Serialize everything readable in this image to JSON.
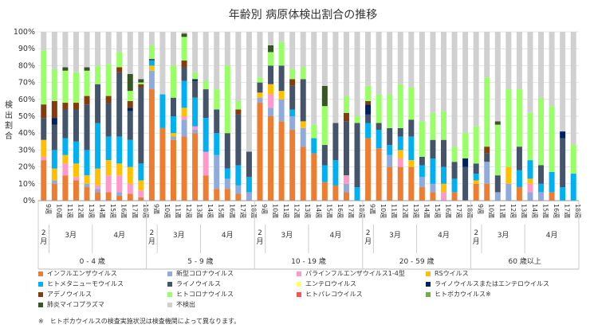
{
  "chart_data": {
    "type": "bar",
    "stacked": true,
    "title": "年齢別 病原体検出割合の推移",
    "ylabel": "検出割合",
    "ylim": [
      0,
      100
    ],
    "y_ticks": [
      "0%",
      "10%",
      "20%",
      "30%",
      "40%",
      "50%",
      "60%",
      "70%",
      "80%",
      "90%",
      "100%"
    ],
    "week_labels": [
      "9週",
      "10週",
      "11週",
      "12週",
      "13週",
      "14週",
      "15週",
      "16週",
      "17週",
      "18週"
    ],
    "month_labels": [
      {
        "label": "2月",
        "at": 0
      },
      {
        "label": "3月",
        "at": 1
      },
      {
        "label": "4月",
        "at": 5
      }
    ],
    "groups": [
      "0 - 4 歳",
      "5 - 9 歳",
      "10 - 19 歳",
      "20 - 59 歳",
      "60 歳以上"
    ],
    "series_names": [
      "インフルエンザウイルス",
      "新型コロナウイルス",
      "パラインフルエンザウイルス1-4型",
      "RSウイルス",
      "ヒトメタニューモウイルス",
      "ライノウイルス",
      "エンテロウイルス",
      "ライノウイルスまたはエンテロウイルス",
      "アデノウイルス",
      "ヒトコロナウイルス",
      "ヒトパレコウイルス",
      "ヒトボカウイルス※",
      "肺炎マイコプラズマ",
      "不検出"
    ],
    "series_colors": [
      "#ed7d31",
      "#8faadc",
      "#ff99cc",
      "#ffc000",
      "#00b0f0",
      "#44546a",
      "#ffff66",
      "#002060",
      "#843c0c",
      "#99ff66",
      "#ff5050",
      "#70ad47",
      "#375623",
      "#d0d0d0"
    ],
    "data": [
      [
        [
          24,
          0,
          2,
          10,
          0,
          13,
          0,
          0,
          8,
          32,
          0,
          0,
          0,
          11
        ],
        [
          10,
          2,
          0,
          7,
          11,
          15,
          0,
          4,
          10,
          19,
          0,
          0,
          0,
          22
        ],
        [
          15,
          0,
          7,
          5,
          10,
          17,
          0,
          0,
          4,
          19,
          0,
          0,
          2,
          21
        ],
        [
          12,
          0,
          2,
          8,
          13,
          19,
          0,
          0,
          4,
          18,
          0,
          0,
          0,
          24
        ],
        [
          8,
          2,
          0,
          5,
          15,
          27,
          0,
          0,
          5,
          15,
          0,
          0,
          2,
          21
        ],
        [
          5,
          2,
          2,
          10,
          27,
          23,
          0,
          0,
          0,
          11,
          0,
          0,
          0,
          20
        ],
        [
          5,
          0,
          10,
          9,
          14,
          20,
          0,
          0,
          4,
          19,
          0,
          0,
          0,
          19
        ],
        [
          3,
          2,
          10,
          7,
          16,
          38,
          0,
          0,
          3,
          9,
          0,
          0,
          0,
          12
        ],
        [
          4,
          0,
          6,
          10,
          16,
          17,
          0,
          2,
          4,
          6,
          0,
          0,
          10,
          25
        ],
        [
          2,
          0,
          4,
          6,
          10,
          45,
          0,
          0,
          2,
          1,
          0,
          0,
          2,
          28
        ]
      ],
      [
        [
          66,
          11,
          0,
          3,
          3,
          1,
          0,
          0,
          0,
          8,
          0,
          0,
          0,
          8
        ],
        [
          43,
          0,
          0,
          0,
          20,
          0,
          0,
          0,
          0,
          0,
          0,
          0,
          0,
          37
        ],
        [
          36,
          2,
          0,
          2,
          10,
          11,
          0,
          0,
          0,
          19,
          0,
          0,
          0,
          20
        ],
        [
          38,
          10,
          2,
          5,
          16,
          8,
          0,
          0,
          4,
          14,
          0,
          0,
          2,
          1
        ],
        [
          40,
          2,
          2,
          0,
          17,
          10,
          0,
          1,
          0,
          4,
          0,
          0,
          0,
          24
        ],
        [
          15,
          0,
          14,
          0,
          20,
          17,
          0,
          0,
          0,
          5,
          0,
          0,
          0,
          29
        ],
        [
          7,
          20,
          0,
          0,
          13,
          14,
          0,
          0,
          0,
          12,
          0,
          0,
          0,
          34
        ],
        [
          7,
          6,
          0,
          0,
          6,
          21,
          0,
          0,
          0,
          40,
          0,
          0,
          0,
          20
        ],
        [
          4,
          5,
          0,
          0,
          12,
          30,
          0,
          0,
          3,
          5,
          0,
          0,
          0,
          41
        ],
        [
          0,
          5,
          0,
          0,
          9,
          15,
          0,
          0,
          0,
          0,
          0,
          0,
          0,
          71
        ]
      ],
      [
        [
          58,
          3,
          0,
          3,
          0,
          6,
          0,
          0,
          0,
          3,
          0,
          0,
          0,
          27
        ],
        [
          50,
          5,
          8,
          6,
          0,
          11,
          0,
          0,
          0,
          8,
          0,
          0,
          4,
          8
        ],
        [
          47,
          13,
          0,
          5,
          0,
          15,
          0,
          0,
          0,
          14,
          0,
          0,
          0,
          6
        ],
        [
          42,
          8,
          0,
          0,
          4,
          14,
          0,
          0,
          4,
          6,
          0,
          0,
          0,
          22
        ],
        [
          32,
          11,
          0,
          4,
          0,
          25,
          0,
          0,
          0,
          7,
          0,
          0,
          0,
          21
        ],
        [
          28,
          0,
          0,
          0,
          9,
          0,
          0,
          0,
          0,
          8,
          0,
          0,
          0,
          55
        ],
        [
          11,
          0,
          0,
          0,
          10,
          12,
          0,
          0,
          0,
          23,
          0,
          0,
          12,
          32
        ],
        [
          9,
          0,
          0,
          0,
          15,
          22,
          0,
          0,
          0,
          0,
          0,
          0,
          0,
          54
        ],
        [
          5,
          5,
          5,
          0,
          0,
          32,
          0,
          0,
          5,
          10,
          0,
          0,
          0,
          38
        ],
        [
          0,
          0,
          0,
          0,
          8,
          38,
          0,
          0,
          0,
          4,
          0,
          0,
          0,
          50
        ]
      ],
      [
        [
          37,
          0,
          0,
          0,
          9,
          5,
          0,
          6,
          2,
          9,
          0,
          0,
          0,
          32
        ],
        [
          31,
          0,
          0,
          0,
          11,
          4,
          0,
          0,
          0,
          17,
          0,
          0,
          0,
          37
        ],
        [
          20,
          7,
          0,
          0,
          6,
          10,
          0,
          0,
          0,
          20,
          0,
          0,
          0,
          37
        ],
        [
          20,
          0,
          5,
          5,
          8,
          5,
          0,
          0,
          0,
          26,
          0,
          0,
          0,
          31
        ],
        [
          20,
          0,
          0,
          4,
          14,
          10,
          0,
          0,
          0,
          19,
          0,
          0,
          0,
          33
        ],
        [
          8,
          6,
          0,
          0,
          7,
          5,
          0,
          0,
          0,
          21,
          0,
          0,
          0,
          53
        ],
        [
          5,
          5,
          0,
          0,
          15,
          11,
          0,
          0,
          0,
          16,
          0,
          0,
          0,
          48
        ],
        [
          0,
          0,
          5,
          5,
          10,
          16,
          0,
          0,
          0,
          17,
          0,
          0,
          0,
          47
        ],
        [
          5,
          0,
          0,
          0,
          8,
          10,
          0,
          0,
          0,
          9,
          0,
          0,
          0,
          68
        ],
        [
          0,
          0,
          0,
          0,
          0,
          20,
          0,
          5,
          0,
          15,
          0,
          0,
          0,
          60
        ]
      ],
      [
        [
          10,
          0,
          0,
          2,
          4,
          6,
          0,
          0,
          0,
          22,
          0,
          0,
          0,
          56
        ],
        [
          10,
          13,
          0,
          0,
          0,
          5,
          0,
          0,
          4,
          41,
          0,
          0,
          0,
          27
        ],
        [
          0,
          5,
          0,
          0,
          0,
          10,
          0,
          0,
          0,
          30,
          0,
          0,
          2,
          53
        ],
        [
          0,
          10,
          0,
          10,
          0,
          0,
          0,
          0,
          0,
          46,
          0,
          0,
          0,
          34
        ],
        [
          8,
          0,
          0,
          0,
          10,
          14,
          0,
          0,
          0,
          34,
          0,
          0,
          0,
          34
        ],
        [
          0,
          5,
          5,
          3,
          11,
          0,
          0,
          0,
          0,
          28,
          0,
          0,
          0,
          48
        ],
        [
          0,
          5,
          0,
          0,
          5,
          11,
          0,
          0,
          0,
          40,
          0,
          0,
          0,
          39
        ],
        [
          5,
          0,
          0,
          0,
          12,
          0,
          0,
          0,
          0,
          39,
          0,
          0,
          0,
          44
        ],
        [
          0,
          0,
          0,
          0,
          8,
          29,
          0,
          4,
          0,
          0,
          0,
          0,
          0,
          59
        ],
        [
          0,
          0,
          0,
          0,
          16,
          0,
          0,
          0,
          0,
          17,
          0,
          0,
          0,
          67
        ]
      ]
    ]
  },
  "legend_items": [
    "インフルエンザウイルス",
    "新型コロナウイルス",
    "パラインフルエンザウイルス1-4型",
    "RSウイルス",
    "ヒトメタニューモウイルス",
    "ライノウイルス",
    "エンテロウイルス",
    "ライノウイルスまたはエンテロウイルス",
    "アデノウイルス",
    "ヒトコロナウイルス",
    "ヒトパレコウイルス",
    "ヒトボカウイルス※",
    "肺炎マイコプラズマ",
    "不検出"
  ],
  "note": "※　ヒトボカウイルスの検査実施状況は検査機関によって異なります。"
}
